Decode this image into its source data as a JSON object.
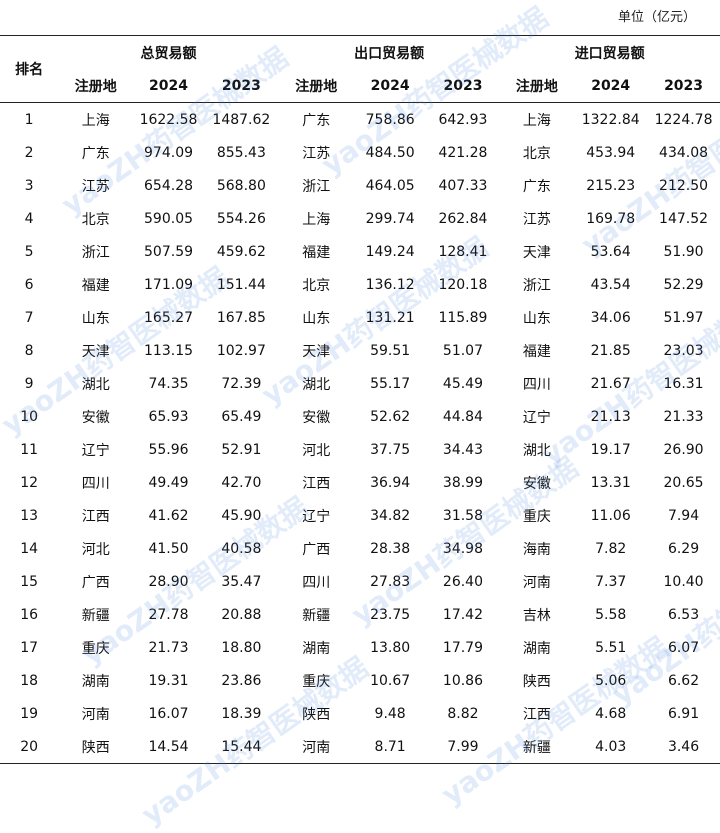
{
  "unit_label": "单位（亿元）",
  "watermark_text": "yaoZH药智医械数据",
  "headers": {
    "rank": "排名",
    "total": "总贸易额",
    "export": "出口贸易额",
    "import": "进口贸易额",
    "region": "注册地",
    "y2024": "2024",
    "y2023": "2023"
  },
  "rows": [
    {
      "rank": "1",
      "total": {
        "region": "上海",
        "v2024": "1622.58",
        "v2023": "1487.62"
      },
      "export": {
        "region": "广东",
        "v2024": "758.86",
        "v2023": "642.93"
      },
      "import": {
        "region": "上海",
        "v2024": "1322.84",
        "v2023": "1224.78"
      }
    },
    {
      "rank": "2",
      "total": {
        "region": "广东",
        "v2024": "974.09",
        "v2023": "855.43"
      },
      "export": {
        "region": "江苏",
        "v2024": "484.50",
        "v2023": "421.28"
      },
      "import": {
        "region": "北京",
        "v2024": "453.94",
        "v2023": "434.08"
      }
    },
    {
      "rank": "3",
      "total": {
        "region": "江苏",
        "v2024": "654.28",
        "v2023": "568.80"
      },
      "export": {
        "region": "浙江",
        "v2024": "464.05",
        "v2023": "407.33"
      },
      "import": {
        "region": "广东",
        "v2024": "215.23",
        "v2023": "212.50"
      }
    },
    {
      "rank": "4",
      "total": {
        "region": "北京",
        "v2024": "590.05",
        "v2023": "554.26"
      },
      "export": {
        "region": "上海",
        "v2024": "299.74",
        "v2023": "262.84"
      },
      "import": {
        "region": "江苏",
        "v2024": "169.78",
        "v2023": "147.52"
      }
    },
    {
      "rank": "5",
      "total": {
        "region": "浙江",
        "v2024": "507.59",
        "v2023": "459.62"
      },
      "export": {
        "region": "福建",
        "v2024": "149.24",
        "v2023": "128.41"
      },
      "import": {
        "region": "天津",
        "v2024": "53.64",
        "v2023": "51.90"
      }
    },
    {
      "rank": "6",
      "total": {
        "region": "福建",
        "v2024": "171.09",
        "v2023": "151.44"
      },
      "export": {
        "region": "北京",
        "v2024": "136.12",
        "v2023": "120.18"
      },
      "import": {
        "region": "浙江",
        "v2024": "43.54",
        "v2023": "52.29"
      }
    },
    {
      "rank": "7",
      "total": {
        "region": "山东",
        "v2024": "165.27",
        "v2023": "167.85"
      },
      "export": {
        "region": "山东",
        "v2024": "131.21",
        "v2023": "115.89"
      },
      "import": {
        "region": "山东",
        "v2024": "34.06",
        "v2023": "51.97"
      }
    },
    {
      "rank": "8",
      "total": {
        "region": "天津",
        "v2024": "113.15",
        "v2023": "102.97"
      },
      "export": {
        "region": "天津",
        "v2024": "59.51",
        "v2023": "51.07"
      },
      "import": {
        "region": "福建",
        "v2024": "21.85",
        "v2023": "23.03"
      }
    },
    {
      "rank": "9",
      "total": {
        "region": "湖北",
        "v2024": "74.35",
        "v2023": "72.39"
      },
      "export": {
        "region": "湖北",
        "v2024": "55.17",
        "v2023": "45.49"
      },
      "import": {
        "region": "四川",
        "v2024": "21.67",
        "v2023": "16.31"
      }
    },
    {
      "rank": "10",
      "total": {
        "region": "安徽",
        "v2024": "65.93",
        "v2023": "65.49"
      },
      "export": {
        "region": "安徽",
        "v2024": "52.62",
        "v2023": "44.84"
      },
      "import": {
        "region": "辽宁",
        "v2024": "21.13",
        "v2023": "21.33"
      }
    },
    {
      "rank": "11",
      "total": {
        "region": "辽宁",
        "v2024": "55.96",
        "v2023": "52.91"
      },
      "export": {
        "region": "河北",
        "v2024": "37.75",
        "v2023": "34.43"
      },
      "import": {
        "region": "湖北",
        "v2024": "19.17",
        "v2023": "26.90"
      }
    },
    {
      "rank": "12",
      "total": {
        "region": "四川",
        "v2024": "49.49",
        "v2023": "42.70"
      },
      "export": {
        "region": "江西",
        "v2024": "36.94",
        "v2023": "38.99"
      },
      "import": {
        "region": "安徽",
        "v2024": "13.31",
        "v2023": "20.65"
      }
    },
    {
      "rank": "13",
      "total": {
        "region": "江西",
        "v2024": "41.62",
        "v2023": "45.90"
      },
      "export": {
        "region": "辽宁",
        "v2024": "34.82",
        "v2023": "31.58"
      },
      "import": {
        "region": "重庆",
        "v2024": "11.06",
        "v2023": "7.94"
      }
    },
    {
      "rank": "14",
      "total": {
        "region": "河北",
        "v2024": "41.50",
        "v2023": "40.58"
      },
      "export": {
        "region": "广西",
        "v2024": "28.38",
        "v2023": "34.98"
      },
      "import": {
        "region": "海南",
        "v2024": "7.82",
        "v2023": "6.29"
      }
    },
    {
      "rank": "15",
      "total": {
        "region": "广西",
        "v2024": "28.90",
        "v2023": "35.47"
      },
      "export": {
        "region": "四川",
        "v2024": "27.83",
        "v2023": "26.40"
      },
      "import": {
        "region": "河南",
        "v2024": "7.37",
        "v2023": "10.40"
      }
    },
    {
      "rank": "16",
      "total": {
        "region": "新疆",
        "v2024": "27.78",
        "v2023": "20.88"
      },
      "export": {
        "region": "新疆",
        "v2024": "23.75",
        "v2023": "17.42"
      },
      "import": {
        "region": "吉林",
        "v2024": "5.58",
        "v2023": "6.53"
      }
    },
    {
      "rank": "17",
      "total": {
        "region": "重庆",
        "v2024": "21.73",
        "v2023": "18.80"
      },
      "export": {
        "region": "湖南",
        "v2024": "13.80",
        "v2023": "17.79"
      },
      "import": {
        "region": "湖南",
        "v2024": "5.51",
        "v2023": "6.07"
      }
    },
    {
      "rank": "18",
      "total": {
        "region": "湖南",
        "v2024": "19.31",
        "v2023": "23.86"
      },
      "export": {
        "region": "重庆",
        "v2024": "10.67",
        "v2023": "10.86"
      },
      "import": {
        "region": "陕西",
        "v2024": "5.06",
        "v2023": "6.62"
      }
    },
    {
      "rank": "19",
      "total": {
        "region": "河南",
        "v2024": "16.07",
        "v2023": "18.39"
      },
      "export": {
        "region": "陕西",
        "v2024": "9.48",
        "v2023": "8.82"
      },
      "import": {
        "region": "江西",
        "v2024": "4.68",
        "v2023": "6.91"
      }
    },
    {
      "rank": "20",
      "total": {
        "region": "陕西",
        "v2024": "14.54",
        "v2023": "15.44"
      },
      "export": {
        "region": "河南",
        "v2024": "8.71",
        "v2023": "7.99"
      },
      "import": {
        "region": "新疆",
        "v2024": "4.03",
        "v2023": "3.46"
      }
    }
  ]
}
